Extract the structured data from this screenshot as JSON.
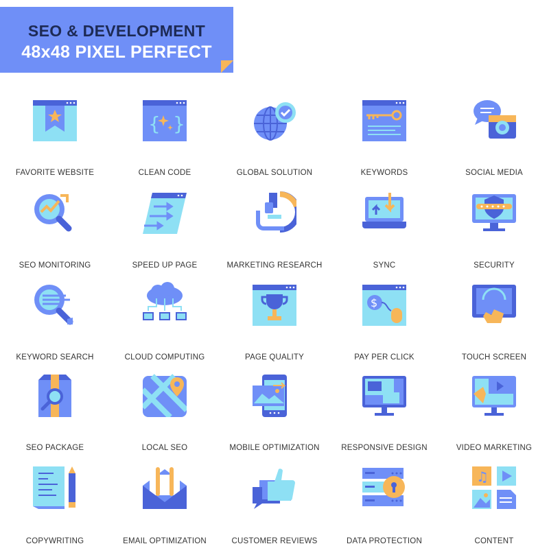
{
  "header": {
    "title": "SEO & DEVELOPMENT",
    "subtitle": "48x48 PIXEL PERFECT"
  },
  "colors": {
    "banner": "#6f8ff7",
    "title_dark": "#1d2a55",
    "icon_blue": "#6f8ff7",
    "icon_light": "#8ee0f4",
    "icon_orange": "#f7b659",
    "icon_navy": "#4a63d8"
  },
  "icons": [
    {
      "label": "FAVORITE WEBSITE",
      "icon": "favorite-website-icon"
    },
    {
      "label": "CLEAN CODE",
      "icon": "clean-code-icon"
    },
    {
      "label": "GLOBAL SOLUTION",
      "icon": "global-solution-icon"
    },
    {
      "label": "KEYWORDS",
      "icon": "keywords-icon"
    },
    {
      "label": "SOCIAL MEDIA",
      "icon": "social-media-icon"
    },
    {
      "label": "SEO MONITORING",
      "icon": "seo-monitoring-icon"
    },
    {
      "label": "SPEED UP PAGE",
      "icon": "speed-up-page-icon"
    },
    {
      "label": "MARKETING RESEARCH",
      "icon": "marketing-research-icon"
    },
    {
      "label": "SYNC",
      "icon": "sync-icon"
    },
    {
      "label": "SECURITY",
      "icon": "security-icon"
    },
    {
      "label": "KEYWORD SEARCH",
      "icon": "keyword-search-icon"
    },
    {
      "label": "CLOUD COMPUTING",
      "icon": "cloud-computing-icon"
    },
    {
      "label": "PAGE QUALITY",
      "icon": "page-quality-icon"
    },
    {
      "label": "PAY PER CLICK",
      "icon": "pay-per-click-icon"
    },
    {
      "label": "TOUCH SCREEN",
      "icon": "touch-screen-icon"
    },
    {
      "label": "SEO PACKAGE",
      "icon": "seo-package-icon"
    },
    {
      "label": "LOCAL SEO",
      "icon": "local-seo-icon"
    },
    {
      "label": "MOBILE OPTIMIZATION",
      "icon": "mobile-optimization-icon"
    },
    {
      "label": "RESPONSIVE DESIGN",
      "icon": "responsive-design-icon"
    },
    {
      "label": "VIDEO MARKETING",
      "icon": "video-marketing-icon"
    },
    {
      "label": "COPYWRITING",
      "icon": "copywriting-icon"
    },
    {
      "label": "EMAIL OPTIMIZATION",
      "icon": "email-optimization-icon"
    },
    {
      "label": "CUSTOMER REVIEWS",
      "icon": "customer-reviews-icon"
    },
    {
      "label": "DATA PROTECTION",
      "icon": "data-protection-icon"
    },
    {
      "label": "CONTENT",
      "icon": "content-icon"
    }
  ]
}
